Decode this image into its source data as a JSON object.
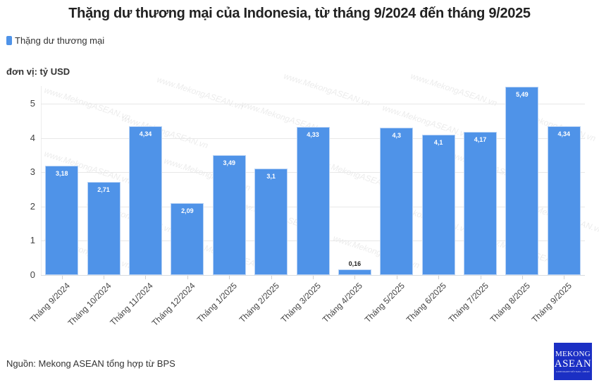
{
  "title": "Thặng dư thương mại của Indonesia, từ tháng 9/2024 đến tháng 9/2025",
  "legend": {
    "label": "Thặng dư thương mại",
    "color": "#4f93e8"
  },
  "unit_label": "đơn vị: tỷ USD",
  "source": "Nguồn: Mekong ASEAN tổng hợp từ BPS",
  "logo": {
    "line1": "MEKONG",
    "line2": "ASEAN",
    "tagline": "KINH DOANH VIỆT NAM – ASEAN",
    "color": "#1b2fc4"
  },
  "watermark": "www.MekongASEAN.vn",
  "chart_data": {
    "type": "bar",
    "title": "Thặng dư thương mại của Indonesia, từ tháng 9/2024 đến tháng 9/2025",
    "xlabel": "",
    "ylabel": "đơn vị: tỷ USD",
    "ylim": [
      0,
      5.5
    ],
    "yticks": [
      0,
      1,
      2,
      3,
      4,
      5
    ],
    "grid": true,
    "legend_position": "top-left",
    "categories": [
      "Tháng 9/2024",
      "Tháng 10/2024",
      "Tháng 11/2024",
      "Tháng 12/2024",
      "Tháng 1/2025",
      "Tháng 2/2025",
      "Tháng 3/2025",
      "Tháng 4/2025",
      "Tháng 5/2025",
      "Tháng 6/2025",
      "Tháng 7/2025",
      "Tháng 8/2025",
      "Tháng 9/2025"
    ],
    "series": [
      {
        "name": "Thặng dư thương mại",
        "color": "#4f93e8",
        "values": [
          3.18,
          2.71,
          4.34,
          2.09,
          3.49,
          3.1,
          4.33,
          0.16,
          4.3,
          4.1,
          4.17,
          5.49,
          4.34
        ],
        "value_labels": [
          "3,18",
          "2,71",
          "4,34",
          "2,09",
          "3,49",
          "3,1",
          "4,33",
          "0,16",
          "4,3",
          "4,1",
          "4,17",
          "5,49",
          "4,34"
        ]
      }
    ]
  }
}
